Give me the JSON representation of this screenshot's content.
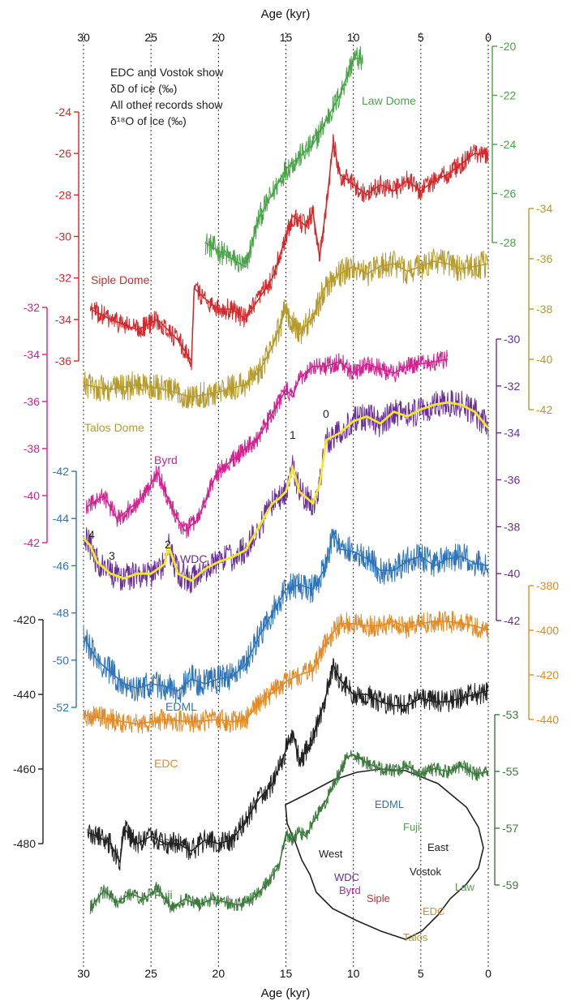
{
  "chart_data": {
    "type": "line",
    "xlabel": "Age (kyr)",
    "x_ticks": [
      30,
      25,
      20,
      15,
      10,
      5,
      0
    ],
    "xlim": [
      30,
      0
    ],
    "note_lines": [
      "EDC and Vostok show",
      "δD of ice (‰)",
      "All other records show",
      "δ¹⁸O of ice (‰)"
    ],
    "event_labels": [
      {
        "label": "4",
        "age": 29.8,
        "color": "#222222"
      },
      {
        "label": "3",
        "age": 28.2,
        "color": "#222222"
      },
      {
        "label": "2",
        "age": 23.8,
        "color": "#222222"
      },
      {
        "label": "1",
        "age": 14.6,
        "color": "#222222"
      },
      {
        "label": "0",
        "age": 11.8,
        "color": "#222222"
      }
    ],
    "axes": [
      {
        "id": "law",
        "side": "right",
        "color": "#4aa24a",
        "ticks": [
          -20,
          -22,
          -24,
          -26,
          -28
        ],
        "label_color": "#4aa24a"
      },
      {
        "id": "siple",
        "side": "left",
        "color": "#d2292c",
        "ticks": [
          -24,
          -26,
          -28,
          -30,
          -32,
          -34,
          -36
        ]
      },
      {
        "id": "talos",
        "side": "right",
        "color": "#b59a2c",
        "ticks": [
          -34,
          -36,
          -38,
          -40,
          -42
        ]
      },
      {
        "id": "byrd",
        "side": "left",
        "color": "#d2208f",
        "ticks": [
          -32,
          -34,
          -36,
          -38,
          -40,
          -42
        ]
      },
      {
        "id": "wdc",
        "side": "right",
        "color": "#6a2d9a",
        "ticks": [
          -30,
          -32,
          -34,
          -36,
          -38,
          -40,
          -42
        ]
      },
      {
        "id": "edml",
        "side": "left",
        "color": "#2f73b8",
        "ticks": [
          -42,
          -44,
          -46,
          -48,
          -50,
          -52
        ]
      },
      {
        "id": "edc",
        "side": "right",
        "color": "#e38a25",
        "ticks": [
          -380,
          -400,
          -420,
          -440
        ]
      },
      {
        "id": "vostok",
        "side": "left",
        "color": "#222222",
        "ticks": [
          -420,
          -440,
          -460,
          -480
        ]
      },
      {
        "id": "fuji",
        "side": "right",
        "color": "#3d7a3d",
        "ticks": [
          -53,
          -55,
          -57,
          -59
        ]
      }
    ],
    "series": [
      {
        "name": "Law Dome",
        "axis": "law",
        "color": "#4aa24a",
        "noise": 0.5,
        "x": [
          21,
          19.5,
          18,
          17,
          16,
          15,
          14,
          13,
          12,
          11,
          10,
          9.3
        ],
        "y": [
          -28,
          -28.5,
          -29,
          -27,
          -26,
          -25,
          -24.5,
          -24,
          -23,
          -22,
          -20.5,
          -20.5
        ]
      },
      {
        "name": "Siple Dome",
        "axis": "siple",
        "color": "#d2292c",
        "noise": 0.5,
        "x": [
          29.5,
          28,
          26,
          24.5,
          23,
          22,
          21.8,
          21,
          20,
          19,
          18,
          17,
          16,
          15,
          14.5,
          13.5,
          13,
          12.5,
          12,
          11.5,
          11,
          10,
          9,
          8,
          7,
          6,
          5,
          4,
          3,
          2,
          1,
          0
        ],
        "y": [
          -33.5,
          -34,
          -34.5,
          -34,
          -35,
          -36,
          -32.5,
          -33,
          -33.5,
          -33.5,
          -34,
          -33,
          -32,
          -30,
          -29,
          -29.5,
          -28.8,
          -31,
          -28.5,
          -25.5,
          -27,
          -27.5,
          -28,
          -27.5,
          -27.8,
          -27.3,
          -27.8,
          -27.3,
          -27,
          -26.5,
          -26,
          -26
        ]
      },
      {
        "name": "Talos Dome",
        "axis": "talos",
        "color": "#b59a2c",
        "noise": 0.55,
        "x": [
          30,
          28,
          26,
          24,
          22,
          20,
          18,
          17,
          16,
          15,
          14,
          13,
          12,
          11,
          10,
          9,
          8,
          7,
          6,
          5,
          4,
          3,
          2,
          1,
          0
        ],
        "y": [
          -41,
          -41.2,
          -41,
          -41.2,
          -41.5,
          -41.3,
          -41,
          -40.5,
          -39.5,
          -38,
          -39,
          -38.3,
          -37,
          -36.6,
          -36.3,
          -36.6,
          -36.3,
          -36.2,
          -36.5,
          -36.3,
          -36.1,
          -36.2,
          -36.4,
          -36.3,
          -36.2
        ]
      },
      {
        "name": "Byrd",
        "axis": "byrd",
        "color": "#d2208f",
        "noise": 0.4,
        "x": [
          29.8,
          28.5,
          27.5,
          26.5,
          25.5,
          24.5,
          23.5,
          22.5,
          21.5,
          20.5,
          20,
          19,
          18,
          17,
          16,
          15,
          14.5,
          14,
          13,
          12,
          11,
          10,
          9,
          8,
          7,
          6,
          5,
          4,
          3
        ],
        "y": [
          -40.5,
          -40,
          -41,
          -40.5,
          -40,
          -39,
          -40.5,
          -41.5,
          -41,
          -39.5,
          -39,
          -38.5,
          -38,
          -37.5,
          -36.5,
          -35.5,
          -35.8,
          -35,
          -34.5,
          -34.5,
          -34.3,
          -34.8,
          -34.4,
          -34.6,
          -34.8,
          -34.5,
          -34.4,
          -34.3,
          -34.2
        ]
      },
      {
        "name": "WDC",
        "axis": "wdc",
        "color": "#6a2d9a",
        "noise": 0.6,
        "x": [
          30,
          29.5,
          29,
          28,
          27,
          26,
          25,
          24,
          23.7,
          23,
          22,
          21,
          20,
          19,
          18,
          17,
          16,
          15.5,
          15,
          14.5,
          14,
          13,
          12.5,
          12,
          11,
          10,
          9,
          8,
          7,
          6,
          5,
          4,
          3,
          2,
          1,
          0
        ],
        "y": [
          -38.5,
          -38.8,
          -39.5,
          -40,
          -40.2,
          -40,
          -40,
          -39.6,
          -38.8,
          -40,
          -40.3,
          -39.8,
          -39.5,
          -39.3,
          -39,
          -38,
          -37,
          -36.8,
          -36.5,
          -35.5,
          -36.5,
          -37,
          -36.2,
          -34.3,
          -34,
          -33.5,
          -33.3,
          -33.6,
          -33.1,
          -33.3,
          -33,
          -32.8,
          -32.7,
          -32.8,
          -33.1,
          -33.8
        ],
        "mean_color": "#f2e72a"
      },
      {
        "name": "EDML",
        "axis": "edml",
        "color": "#2f73b8",
        "noise": 0.6,
        "x": [
          30,
          29,
          28,
          27,
          26,
          25,
          24,
          23,
          22,
          21,
          20,
          19,
          18,
          17,
          16,
          15,
          14,
          13,
          12,
          11.5,
          11,
          10,
          9,
          8,
          7,
          6,
          5,
          4,
          3,
          2,
          1,
          0
        ],
        "y": [
          -49,
          -50,
          -50.5,
          -51,
          -51.2,
          -51,
          -51.1,
          -51.3,
          -50.8,
          -51,
          -50.8,
          -50.7,
          -50.2,
          -49,
          -48,
          -47,
          -46.8,
          -47,
          -46,
          -44.5,
          -45.3,
          -45.4,
          -45.7,
          -46.2,
          -46.2,
          -45.8,
          -45.6,
          -46,
          -45.7,
          -45.6,
          -45.9,
          -46
        ]
      },
      {
        "name": "EDC",
        "axis": "edc",
        "color": "#e38a25",
        "noise": 5,
        "x": [
          30,
          28,
          26,
          24,
          22,
          20,
          19,
          18,
          17,
          16,
          15,
          14,
          13,
          12,
          11,
          10,
          9,
          8,
          7,
          6,
          5,
          4,
          3,
          2,
          1,
          0
        ],
        "y": [
          -438,
          -440,
          -442,
          -440,
          -441,
          -440,
          -441,
          -440,
          -433,
          -428,
          -423,
          -420,
          -418,
          -405,
          -397,
          -397,
          -398,
          -398,
          -396,
          -399,
          -397,
          -396,
          -396,
          -397,
          -398,
          -400
        ]
      },
      {
        "name": "Vostok",
        "axis": "vostok",
        "color": "#222222",
        "noise": 3,
        "x": [
          29.7,
          29,
          28,
          27.3,
          27,
          26,
          25,
          24,
          23,
          22,
          21,
          20,
          19,
          18,
          17,
          16,
          15,
          14.5,
          14,
          13,
          12,
          11.5,
          11,
          10,
          9,
          8,
          7,
          6,
          5,
          4,
          3,
          2,
          1,
          0
        ],
        "y": [
          -477,
          -478,
          -480,
          -485,
          -476,
          -480,
          -478,
          -480,
          -480,
          -482,
          -479,
          -480,
          -479,
          -474,
          -468,
          -464,
          -455,
          -450,
          -458,
          -452,
          -440,
          -432,
          -436,
          -440,
          -440,
          -442,
          -443,
          -443,
          -441,
          -442,
          -442,
          -441,
          -440,
          -439
        ]
      },
      {
        "name": "Fuji",
        "axis": "fuji",
        "color": "#3d7a3d",
        "noise": 0.25,
        "x": [
          29.5,
          28.5,
          27.5,
          26.5,
          25.5,
          24.5,
          23.5,
          22.5,
          21.5,
          20.5,
          19.5,
          18.5,
          17.5,
          16.5,
          15.5,
          15,
          14.5,
          14,
          13.5,
          13,
          12.5,
          12,
          11.5,
          11,
          10.5,
          10,
          9,
          8,
          7,
          6,
          5,
          4,
          3,
          2,
          1,
          0
        ],
        "y": [
          -59.8,
          -59.2,
          -59.6,
          -59.3,
          -59.5,
          -59.1,
          -59.8,
          -59.5,
          -59.7,
          -59.5,
          -59.6,
          -59.7,
          -59.5,
          -59,
          -58.3,
          -57.2,
          -57.4,
          -57.1,
          -57.3,
          -56.8,
          -56.4,
          -56,
          -55.5,
          -55,
          -54.5,
          -54.4,
          -54.7,
          -54.9,
          -55,
          -54.8,
          -55.1,
          -54.9,
          -55,
          -54.8,
          -55.1,
          -55
        ]
      }
    ],
    "series_labels": [
      {
        "text": "Law Dome",
        "color": "#4aa24a"
      },
      {
        "text": "Siple Dome",
        "color": "#d2292c"
      },
      {
        "text": "Talos Dome",
        "color": "#b59a2c"
      },
      {
        "text": "Byrd",
        "color": "#d2208f"
      },
      {
        "text": "WDC",
        "color": "#6a2d9a"
      },
      {
        "text": "EDML",
        "color": "#2f73b8"
      },
      {
        "text": "EDC",
        "color": "#e38a25"
      },
      {
        "text": "Vostok",
        "color": "#222222"
      },
      {
        "text": "Fuji",
        "color": "#3d7a3d"
      }
    ],
    "inset_map": {
      "labels": [
        {
          "text": "EDML",
          "color": "#2f73b8"
        },
        {
          "text": "Fuji",
          "color": "#4aa24a"
        },
        {
          "text": "East",
          "color": "#222222"
        },
        {
          "text": "West",
          "color": "#222222"
        },
        {
          "text": "Vostok",
          "color": "#222222"
        },
        {
          "text": "Law",
          "color": "#4aa24a"
        },
        {
          "text": "WDC",
          "color": "#6a2d9a"
        },
        {
          "text": "Byrd",
          "color": "#d2208f"
        },
        {
          "text": "Siple",
          "color": "#d2292c"
        },
        {
          "text": "EDC",
          "color": "#e38a25"
        },
        {
          "text": "Talos",
          "color": "#b59a2c"
        }
      ]
    }
  }
}
